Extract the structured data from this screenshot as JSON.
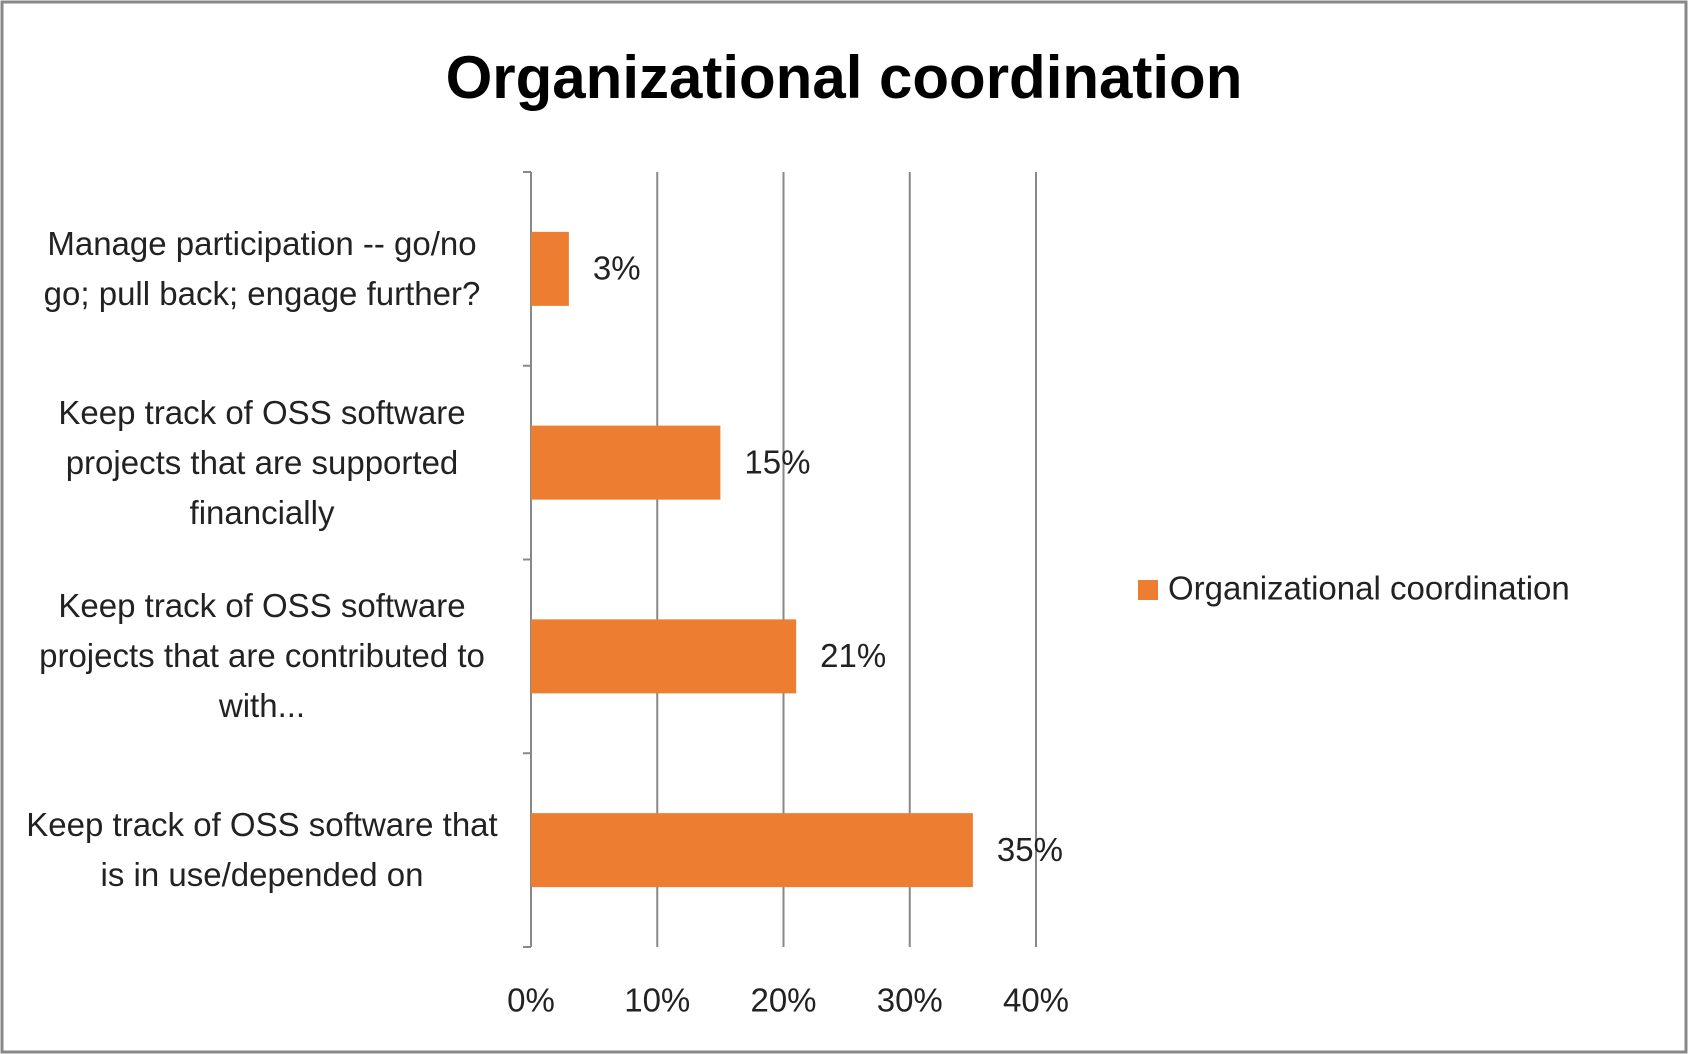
{
  "chart_data": {
    "type": "hbar",
    "title": "Organizational coordination",
    "categories": [
      "Manage participation -- go/no go; pull back; engage further?",
      "Keep track of OSS software projects that are supported financially",
      "Keep track of OSS software projects that are contributed to with...",
      "Keep track of OSS software that is in use/depended on"
    ],
    "series": [
      {
        "name": "Organizational coordination",
        "color": "#ed7d31",
        "values": [
          3,
          15,
          21,
          35
        ],
        "value_labels": [
          "3%",
          "15%",
          "21%",
          "35%"
        ]
      }
    ],
    "xlim": [
      0,
      40
    ],
    "xticks": [
      {
        "value": 0,
        "label": "0%"
      },
      {
        "value": 10,
        "label": "10%"
      },
      {
        "value": 20,
        "label": "20%"
      },
      {
        "value": 30,
        "label": "30%"
      },
      {
        "value": 40,
        "label": "40%"
      }
    ],
    "grid": true,
    "legend": "right"
  }
}
